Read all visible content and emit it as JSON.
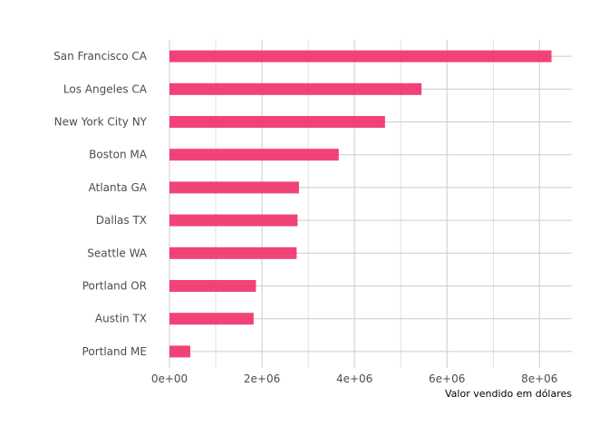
{
  "chart_data": {
    "type": "bar",
    "orientation": "horizontal",
    "categories": [
      "San Francisco CA",
      "Los Angeles CA",
      "New York City NY",
      "Boston MA",
      "Atlanta GA",
      "Dallas TX",
      "Seattle WA",
      "Portland OR",
      "Austin TX",
      "Portland ME"
    ],
    "values": [
      8260000,
      5450000,
      4660000,
      3660000,
      2800000,
      2770000,
      2750000,
      1870000,
      1820000,
      450000
    ],
    "xlabel": "Valor vendido em dólares",
    "ylabel": "",
    "title": "",
    "xlim": [
      0,
      8700000
    ],
    "x_ticks": [
      0,
      2000000,
      4000000,
      6000000,
      8000000
    ],
    "x_tick_labels": [
      "0e+00",
      "2e+06",
      "4e+06",
      "6e+06",
      "8e+06"
    ],
    "grid": true,
    "legend": "none",
    "colors": {
      "bar": "#f0336b",
      "grid": "#cccccc",
      "background": "#ffffff"
    }
  }
}
